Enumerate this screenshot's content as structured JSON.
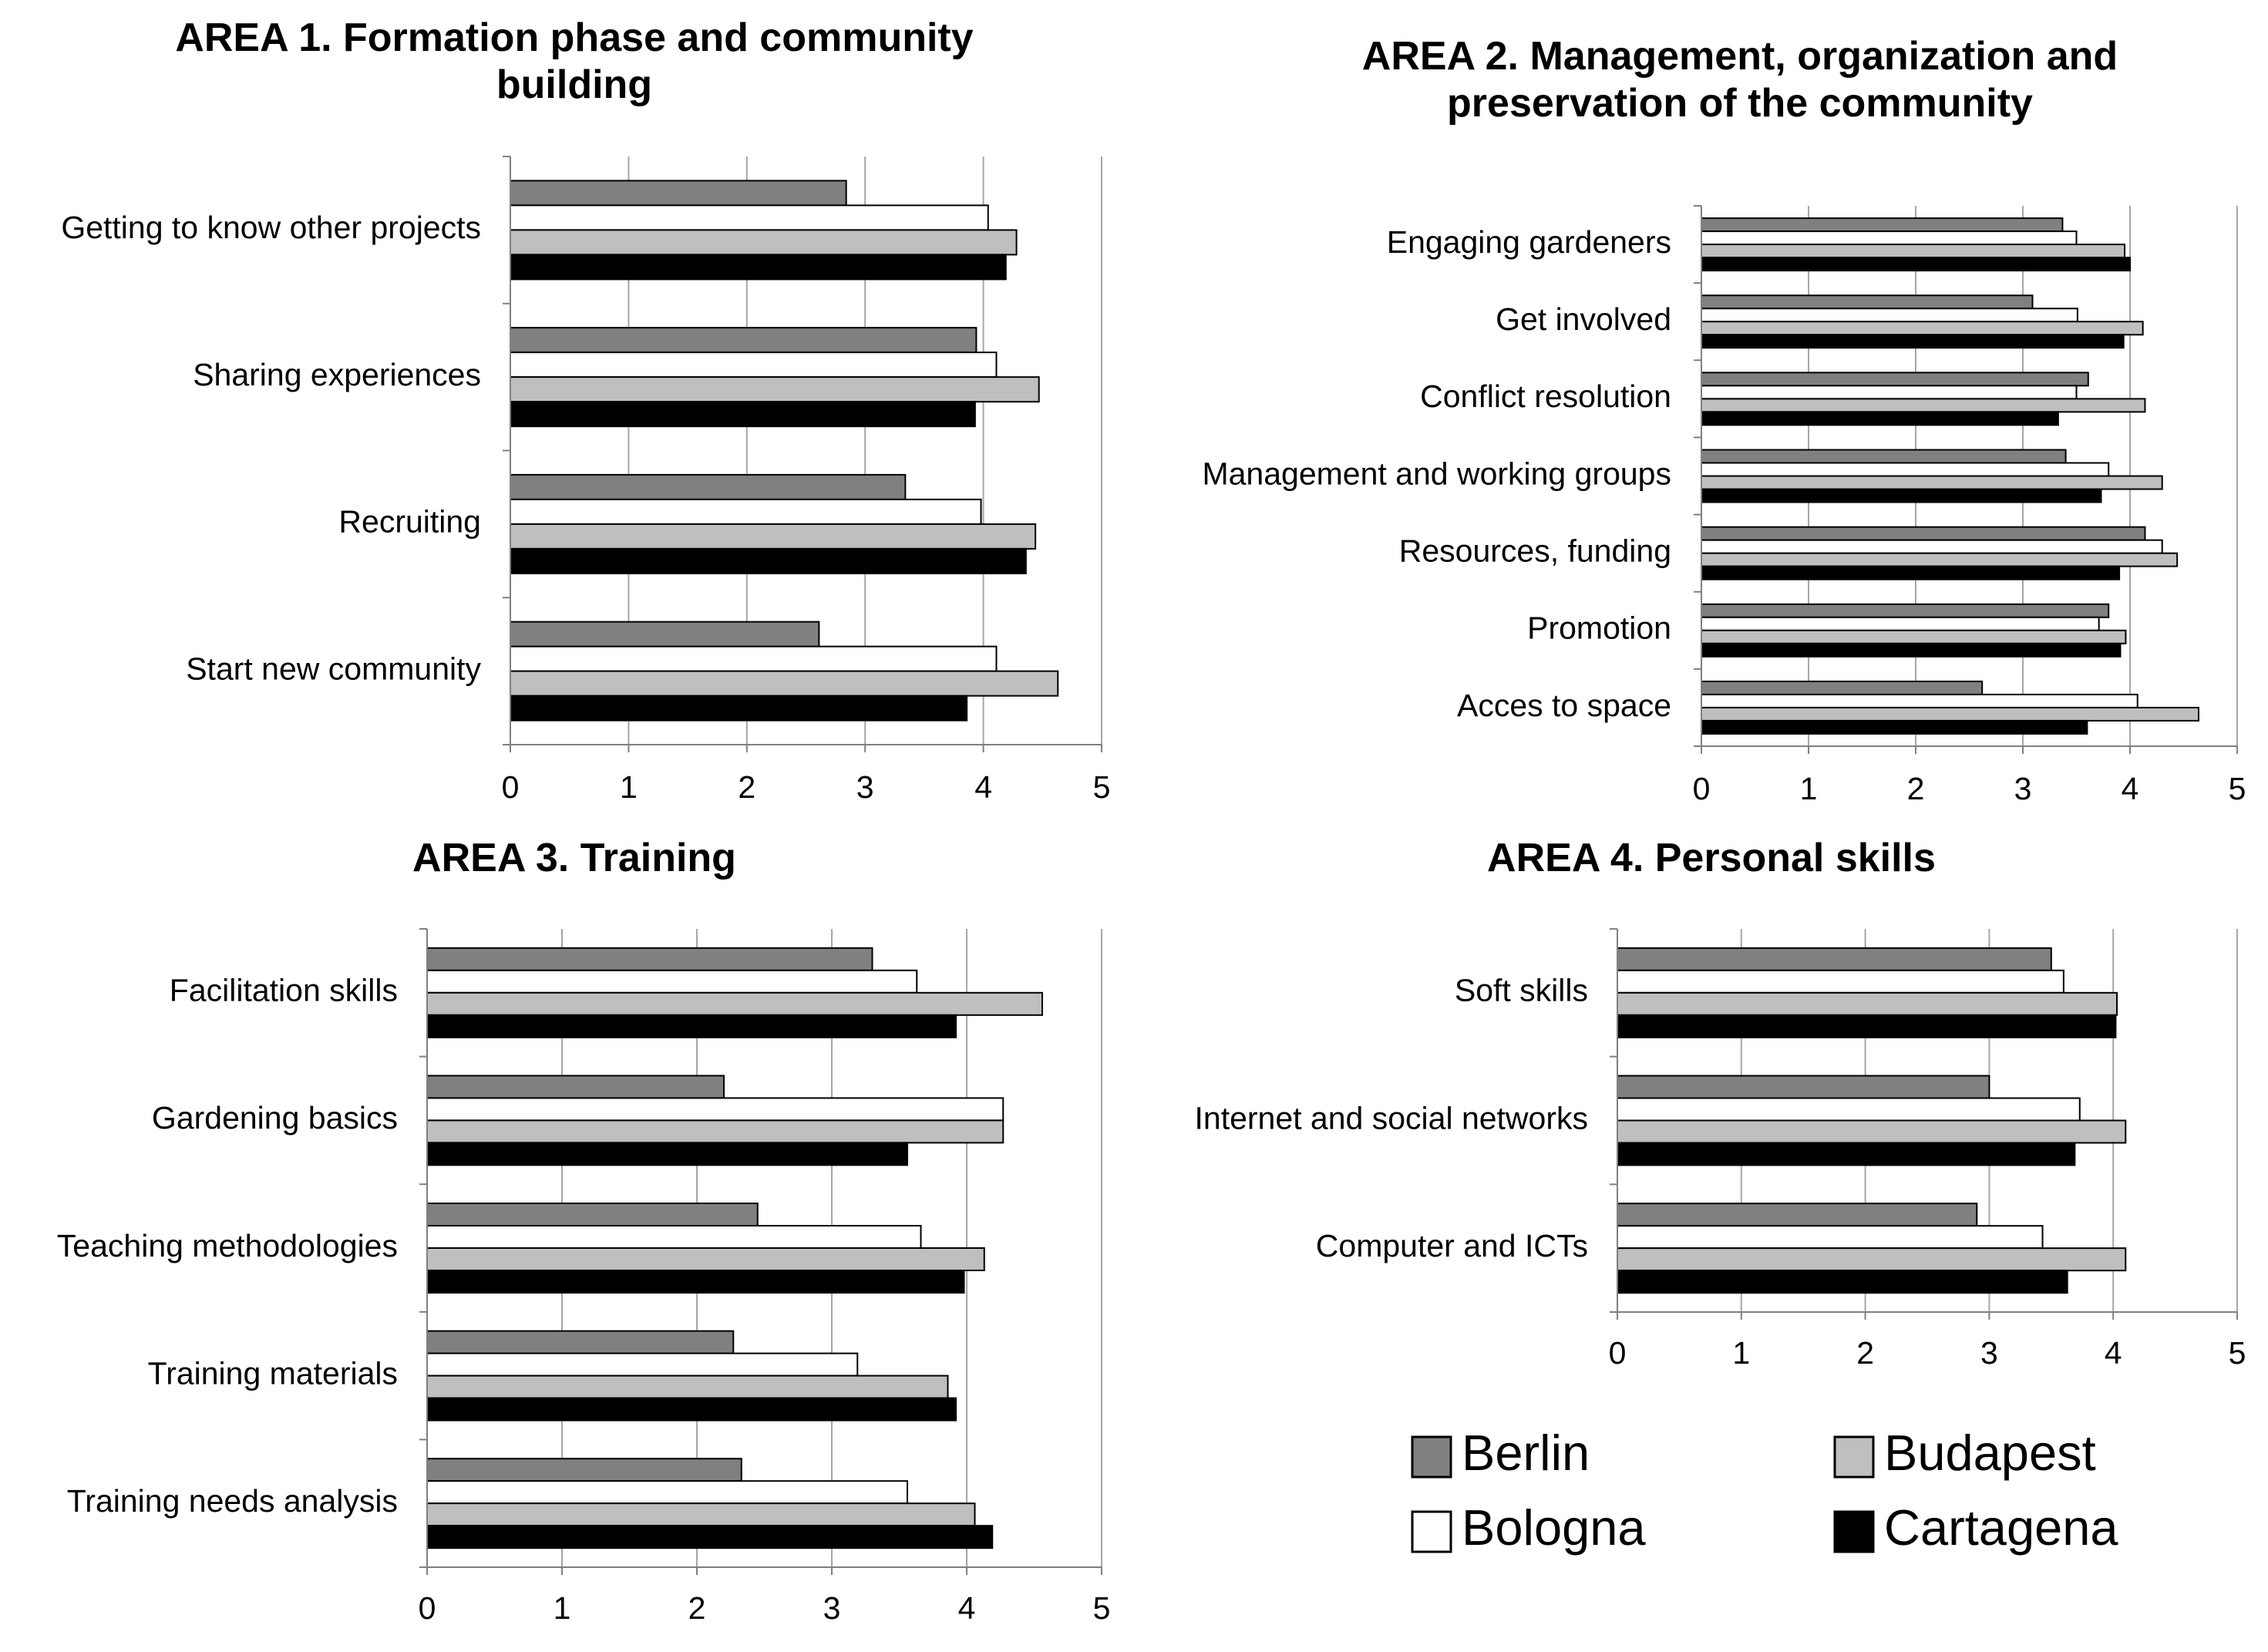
{
  "chart_data": [
    {
      "type": "bar",
      "orientation": "horizontal",
      "title": "AREA 1. Formation phase and community building",
      "categories": [
        "Getting to know other projects",
        "Sharing experiences",
        "Recruiting",
        "Start new community"
      ],
      "series": [
        {
          "name": "Berlin",
          "values": [
            2.84,
            3.94,
            3.34,
            2.61
          ]
        },
        {
          "name": "Bologna",
          "values": [
            4.04,
            4.11,
            3.98,
            4.11
          ]
        },
        {
          "name": "Budapest",
          "values": [
            4.28,
            4.47,
            4.44,
            4.63
          ]
        },
        {
          "name": "Cartagena",
          "values": [
            4.19,
            3.93,
            4.36,
            3.86
          ]
        }
      ],
      "xlim": [
        0,
        5
      ],
      "ticks": [
        "0",
        "1",
        "2",
        "3",
        "4",
        "5"
      ],
      "xlabel": "",
      "ylabel": ""
    },
    {
      "type": "bar",
      "orientation": "horizontal",
      "title": "AREA 2. Management, organization and preservation of the community",
      "categories": [
        "Engaging gardeners",
        "Get involved",
        "Conflict resolution",
        "Management and working groups",
        "Resources, funding",
        "Promotion",
        "Acces to space"
      ],
      "series": [
        {
          "name": "Berlin",
          "values": [
            3.37,
            3.09,
            3.61,
            3.4,
            4.14,
            3.8,
            2.62
          ]
        },
        {
          "name": "Bologna",
          "values": [
            3.5,
            3.51,
            3.5,
            3.8,
            4.3,
            3.71,
            4.07
          ]
        },
        {
          "name": "Budapest",
          "values": [
            3.95,
            4.12,
            4.14,
            4.3,
            4.44,
            3.96,
            4.64
          ]
        },
        {
          "name": "Cartagena",
          "values": [
            4.0,
            3.94,
            3.33,
            3.73,
            3.9,
            3.91,
            3.6
          ]
        }
      ],
      "xlim": [
        0,
        5
      ],
      "ticks": [
        "0",
        "1",
        "2",
        "3",
        "4",
        "5"
      ],
      "xlabel": "",
      "ylabel": ""
    },
    {
      "type": "bar",
      "orientation": "horizontal",
      "title": "AREA 3. Training",
      "categories": [
        "Facilitation skills",
        "Gardening basics",
        "Teaching methodologies",
        "Training materials",
        "Training needs analysis"
      ],
      "series": [
        {
          "name": "Berlin",
          "values": [
            3.3,
            2.2,
            2.45,
            2.27,
            2.33
          ]
        },
        {
          "name": "Bologna",
          "values": [
            3.63,
            4.27,
            3.66,
            3.19,
            3.56
          ]
        },
        {
          "name": "Budapest",
          "values": [
            4.56,
            4.27,
            4.13,
            3.86,
            4.06
          ]
        },
        {
          "name": "Cartagena",
          "values": [
            3.92,
            3.56,
            3.98,
            3.92,
            4.19
          ]
        }
      ],
      "xlim": [
        0,
        5
      ],
      "ticks": [
        "0",
        "1",
        "2",
        "3",
        "4",
        "5"
      ],
      "xlabel": "",
      "ylabel": ""
    },
    {
      "type": "bar",
      "orientation": "horizontal",
      "title": "AREA 4. Personal skills",
      "categories": [
        "Soft skills",
        "Internet and social networks",
        "Computer and ICTs"
      ],
      "series": [
        {
          "name": "Berlin",
          "values": [
            3.5,
            3.0,
            2.9
          ]
        },
        {
          "name": "Bologna",
          "values": [
            3.6,
            3.73,
            3.43
          ]
        },
        {
          "name": "Budapest",
          "values": [
            4.03,
            4.1,
            4.1
          ]
        },
        {
          "name": "Cartagena",
          "values": [
            4.02,
            3.69,
            3.63
          ]
        }
      ],
      "xlim": [
        0,
        5
      ],
      "ticks": [
        "0",
        "1",
        "2",
        "3",
        "4",
        "5"
      ],
      "xlabel": "",
      "ylabel": ""
    }
  ],
  "legend": {
    "placement": "bottom-right",
    "items": [
      {
        "name": "Berlin",
        "color": "#808080"
      },
      {
        "name": "Bologna",
        "color": "#ffffff"
      },
      {
        "name": "Budapest",
        "color": "#bfbfbf"
      },
      {
        "name": "Cartagena",
        "color": "#000000"
      }
    ]
  }
}
